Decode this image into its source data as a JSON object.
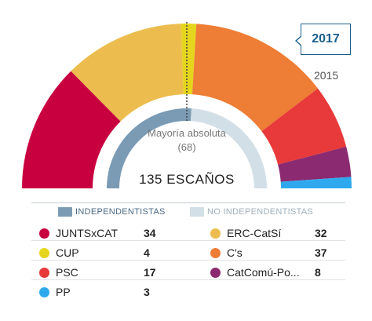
{
  "year_selector": {
    "active": "2017",
    "inactive": "2015",
    "active_color": "#1a5e8c"
  },
  "chart_data": {
    "type": "pie",
    "variant": "semicircle-parliament",
    "total_label": "135 ESCAÑOS",
    "majority_label": "Mayoría absoluta",
    "majority_value": "(68)",
    "parties": [
      {
        "name": "JUNTSxCAT",
        "seats": 34,
        "color": "#c8003f",
        "bloc": "independentistas"
      },
      {
        "name": "ERC-CatSí",
        "seats": 32,
        "color": "#ecbd4e",
        "bloc": "independentistas"
      },
      {
        "name": "CUP",
        "seats": 4,
        "color": "#e5d51c",
        "bloc": "independentistas"
      },
      {
        "name": "C's",
        "seats": 37,
        "color": "#ee7d35",
        "bloc": "no_independentistas"
      },
      {
        "name": "PSC",
        "seats": 17,
        "color": "#e83a3a",
        "bloc": "no_independentistas"
      },
      {
        "name": "CatComú-Po...",
        "seats": 8,
        "color": "#8b2a71",
        "bloc": "no_independentistas"
      },
      {
        "name": "PP",
        "seats": 3,
        "color": "#2fa9ee",
        "bloc": "no_independentistas"
      }
    ],
    "blocs": {
      "independentistas": {
        "label": "INDEPENDENTISTAS",
        "seats": 70,
        "color": "#7b9bb5"
      },
      "no_independentistas": {
        "label": "NO INDEPENDENTISTAS",
        "seats": 65,
        "color": "#d3dfe7"
      }
    }
  }
}
